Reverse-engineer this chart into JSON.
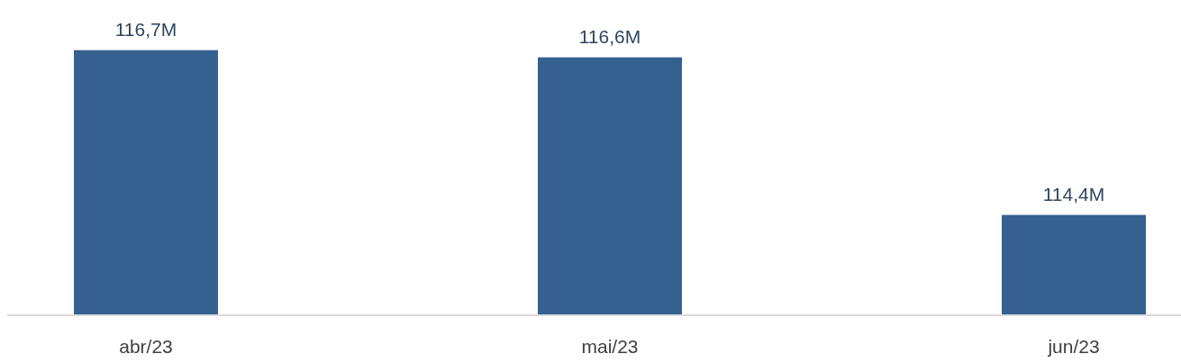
{
  "chart_data": {
    "type": "bar",
    "categories": [
      "abr/23",
      "mai/23",
      "jun/23"
    ],
    "series": [
      {
        "color": "#36608f",
        "values": [
          116.7,
          116.6,
          114.4
        ],
        "value_labels": [
          "116,7M",
          "116,6M",
          "114,4M"
        ]
      }
    ],
    "ylim": [
      113,
      117.4
    ],
    "tick_labels": "x"
  }
}
